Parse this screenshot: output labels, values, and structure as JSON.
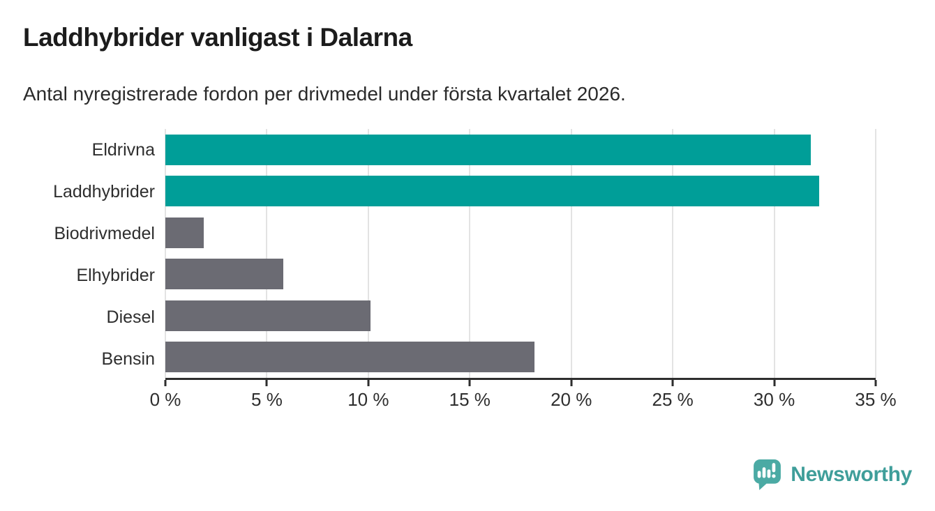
{
  "header": {
    "title": "Laddhybrider vanligast i Dalarna",
    "subtitle": "Antal nyregistrerade fordon per drivmedel under första kvartalet 2026."
  },
  "chart_data": {
    "type": "bar",
    "orientation": "horizontal",
    "title": "Laddhybrider vanligast i Dalarna",
    "subtitle": "Antal nyregistrerade fordon per drivmedel under första kvartalet 2026.",
    "categories": [
      "Eldrivna",
      "Laddhybrider",
      "Biodrivmedel",
      "Elhybrider",
      "Diesel",
      "Bensin"
    ],
    "values": [
      31.8,
      32.2,
      1.9,
      5.8,
      10.1,
      18.2
    ],
    "unit": "%",
    "xlabel": "",
    "ylabel": "",
    "xlim": [
      0,
      35
    ],
    "x_tick_values": [
      0,
      5,
      10,
      15,
      20,
      25,
      30,
      35
    ],
    "x_tick_labels": [
      "0 %",
      "5 %",
      "10 %",
      "15 %",
      "20 %",
      "25 %",
      "30 %",
      "35 %"
    ],
    "grid": true,
    "legend": false,
    "highlight_color": "#009e98",
    "default_color": "#6b6b73",
    "bar_colors": [
      "#009e98",
      "#009e98",
      "#6b6b73",
      "#6b6b73",
      "#6b6b73",
      "#6b6b73"
    ]
  },
  "footer": {
    "brand": "Newsworthy",
    "logo_color": "#4baaa4",
    "brand_text_color": "#3f9e9a"
  }
}
